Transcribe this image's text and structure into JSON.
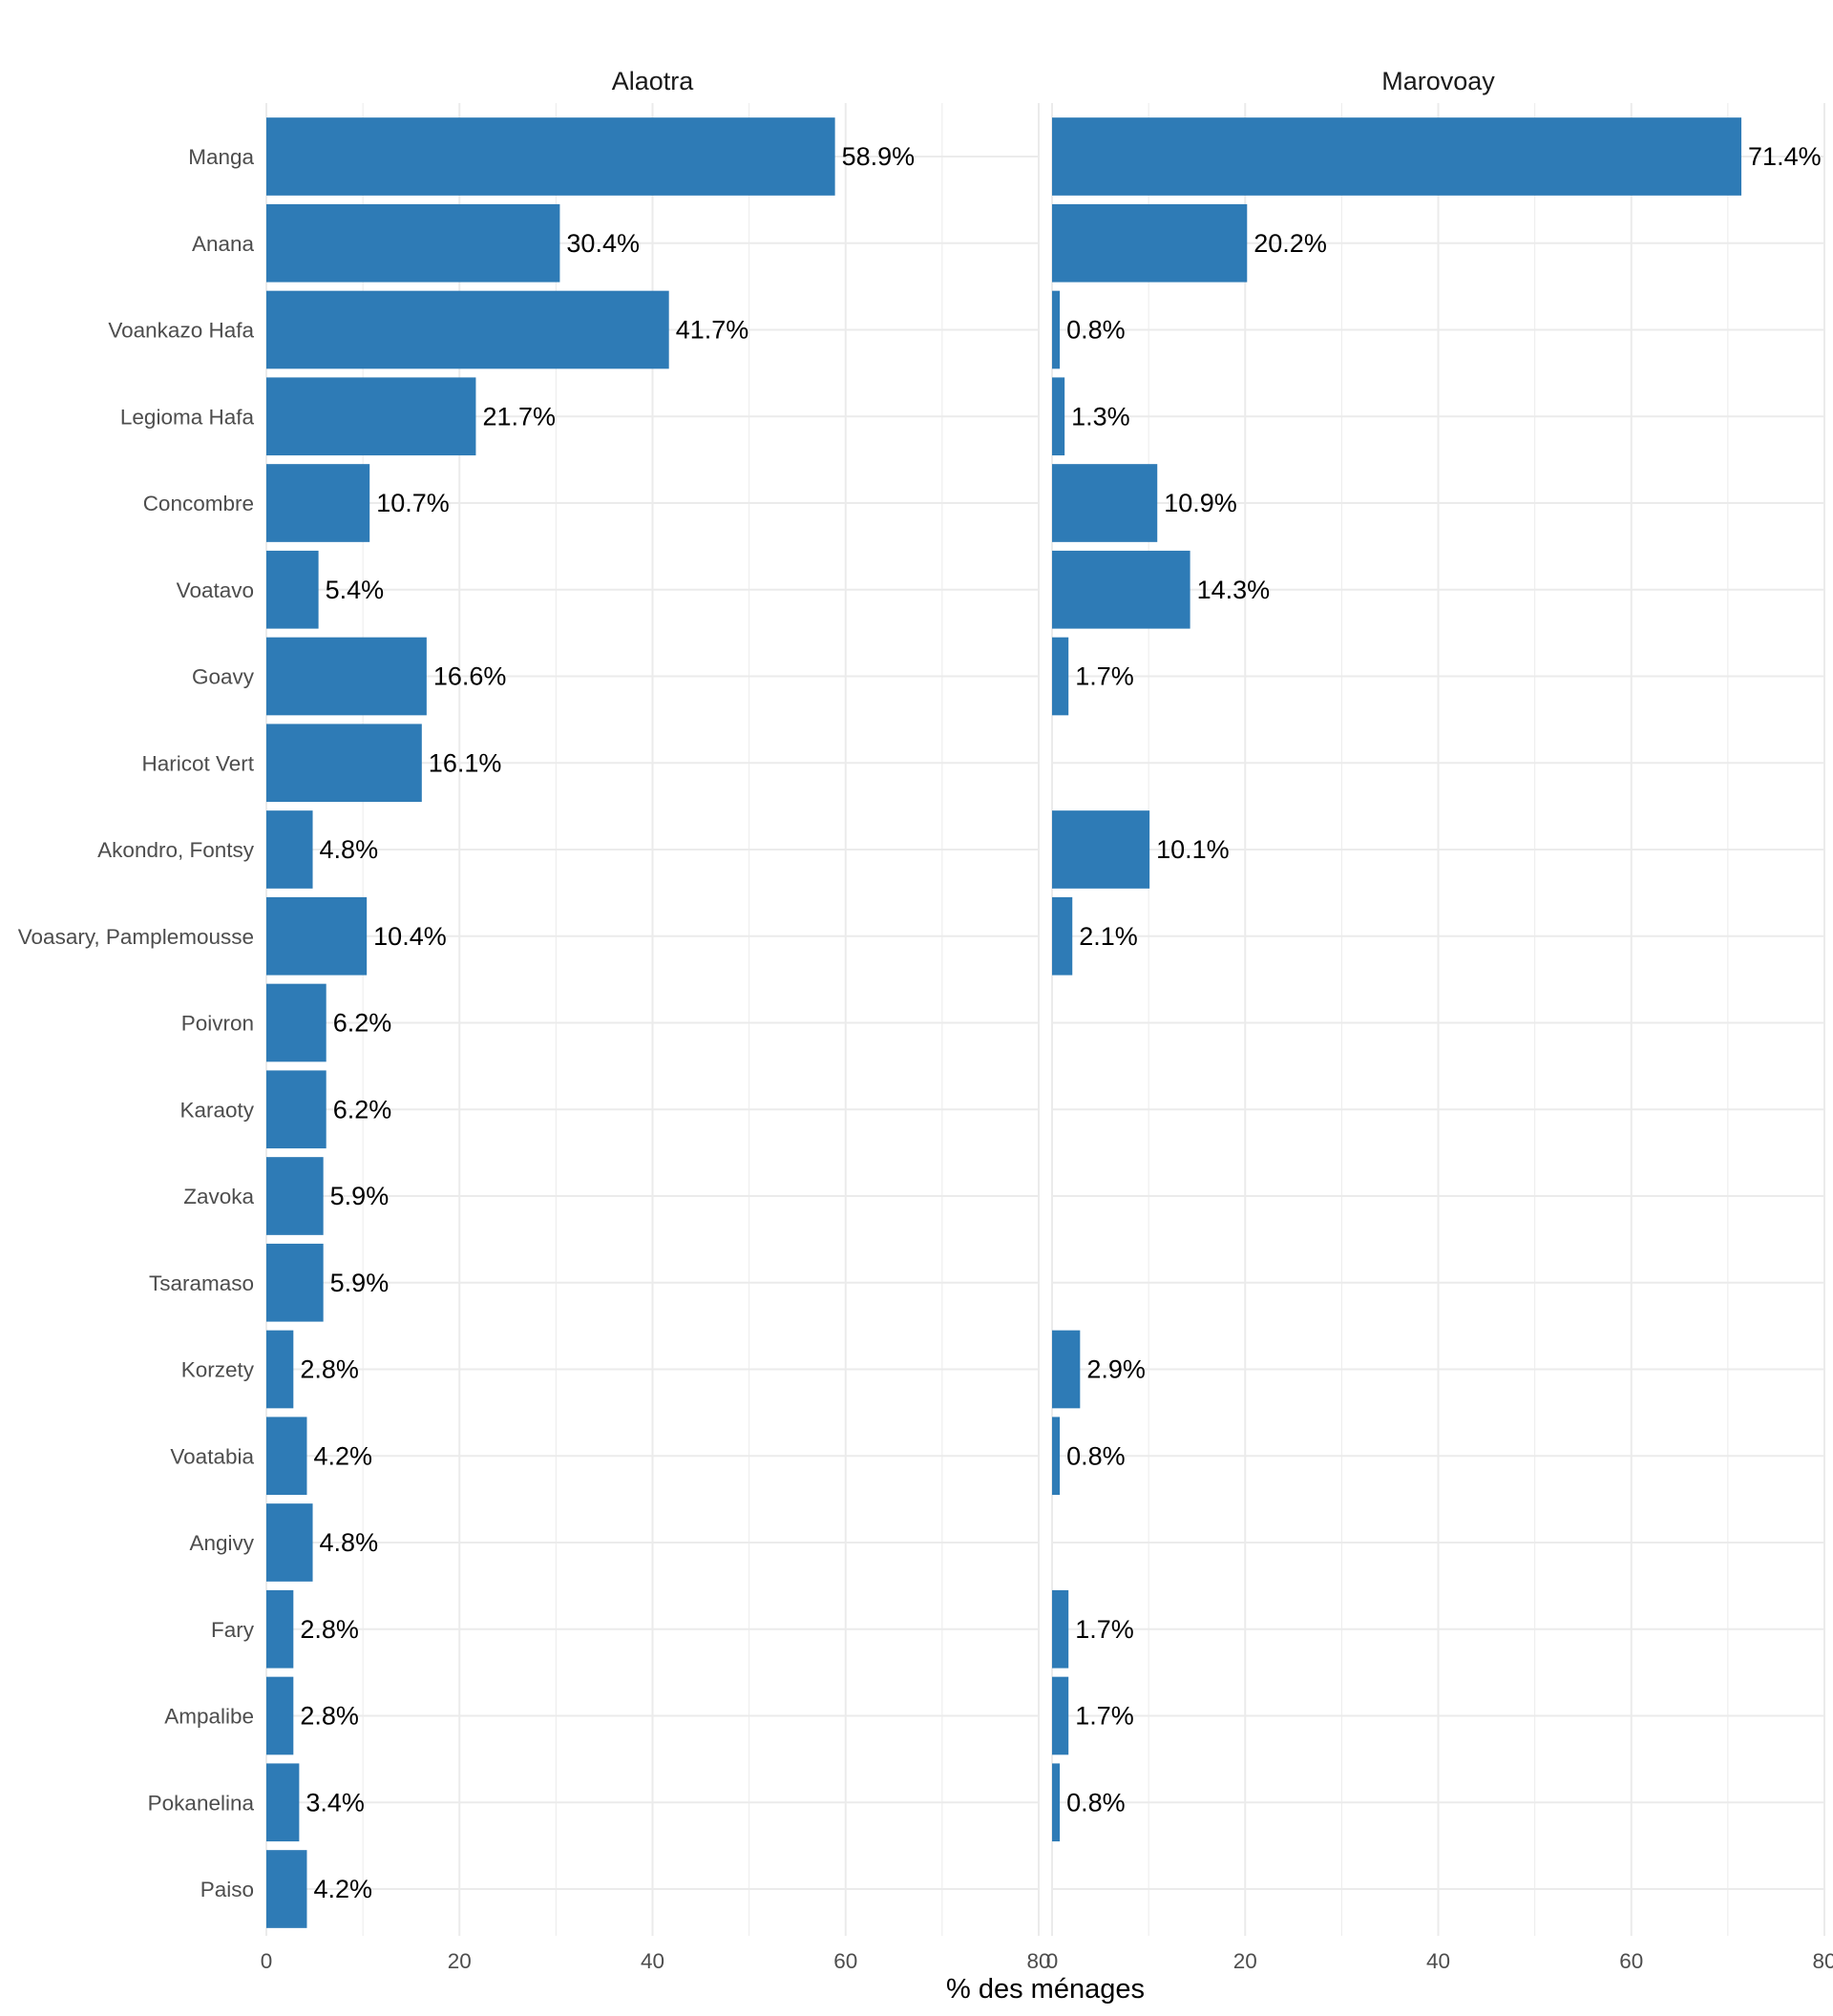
{
  "chart_data": {
    "type": "bar",
    "orientation": "horizontal",
    "categories": [
      "Manga",
      "Anana",
      "Voankazo Hafa",
      "Legioma Hafa",
      "Concombre",
      "Voatavo",
      "Goavy",
      "Haricot Vert",
      "Akondro, Fontsy",
      "Voasary, Pamplemousse",
      "Poivron",
      "Karaoty",
      "Zavoka",
      "Tsaramaso",
      "Korzety",
      "Voatabia",
      "Angivy",
      "Fary",
      "Ampalibe",
      "Pokanelina",
      "Paiso"
    ],
    "facets": [
      {
        "title": "Alaotra",
        "values": [
          58.9,
          30.4,
          41.7,
          21.7,
          10.7,
          5.4,
          16.6,
          16.1,
          4.8,
          10.4,
          6.2,
          6.2,
          5.9,
          5.9,
          2.8,
          4.2,
          4.8,
          2.8,
          2.8,
          3.4,
          4.2
        ],
        "labels": [
          "58.9%",
          "30.4%",
          "41.7%",
          "21.7%",
          "10.7%",
          "5.4%",
          "16.6%",
          "16.1%",
          "4.8%",
          "10.4%",
          "6.2%",
          "6.2%",
          "5.9%",
          "5.9%",
          "2.8%",
          "4.2%",
          "4.8%",
          "2.8%",
          "2.8%",
          "3.4%",
          "4.2%"
        ]
      },
      {
        "title": "Marovoay",
        "values": [
          71.4,
          20.2,
          0.8,
          1.3,
          10.9,
          14.3,
          1.7,
          null,
          10.1,
          2.1,
          null,
          null,
          null,
          null,
          2.9,
          0.8,
          null,
          1.7,
          1.7,
          0.8,
          null
        ],
        "labels": [
          "71.4%",
          "20.2%",
          "0.8%",
          "1.3%",
          "10.9%",
          "14.3%",
          "1.7%",
          null,
          "10.1%",
          "2.1%",
          null,
          null,
          null,
          null,
          "2.9%",
          "0.8%",
          null,
          "1.7%",
          "1.7%",
          "0.8%",
          null
        ]
      }
    ],
    "xlabel": "% des ménages",
    "ylabel": "",
    "xlim": [
      0,
      80
    ],
    "x_ticks": [
      "0",
      "20",
      "40",
      "60",
      "80"
    ],
    "grid": true,
    "bar_color": "#2e7bb6",
    "grid_color": "#ebebeb"
  }
}
